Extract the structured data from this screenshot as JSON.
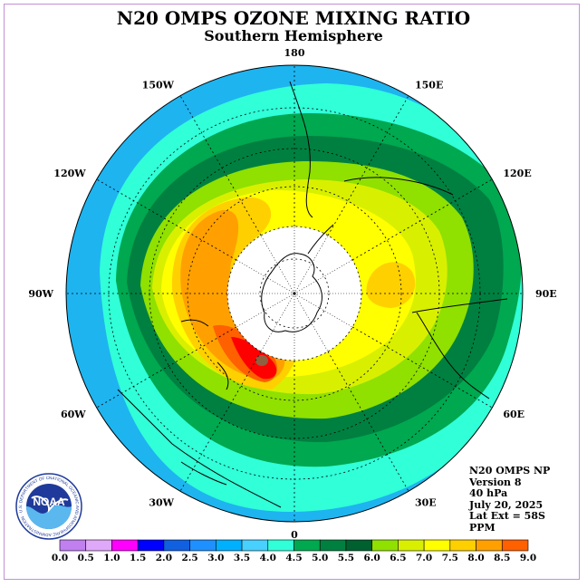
{
  "title": "N20 OMPS OZONE MIXING RATIO",
  "subtitle": "Southern Hemisphere",
  "longitude_labels": [
    {
      "text": "90W",
      "lon": -90
    },
    {
      "text": "60W",
      "lon": -60
    },
    {
      "text": "30W",
      "lon": -30
    },
    {
      "text": "0",
      "lon": 0
    },
    {
      "text": "30E",
      "lon": 30
    },
    {
      "text": "60E",
      "lon": 60
    },
    {
      "text": "90E",
      "lon": 90
    },
    {
      "text": "120E",
      "lon": 120
    },
    {
      "text": "150E",
      "lon": 150
    },
    {
      "text": "180",
      "lon": 180
    },
    {
      "text": "150W",
      "lon": -150
    },
    {
      "text": "120W",
      "lon": -120
    }
  ],
  "info": {
    "product": "N20 OMPS NP",
    "version": "Version 8",
    "level": "40 hPa",
    "date": "July 20, 2025",
    "lat_ext": "Lat Ext = 58S",
    "units": "PPM"
  },
  "logo": {
    "text": "NOAA",
    "ring_text": "NATIONAL OCEANIC AND ATMOSPHERIC ADMINISTRATION · U.S. DEPARTMENT OF COMMERCE"
  },
  "colorbar": {
    "ticks": [
      "0.0",
      "0.5",
      "1.0",
      "1.5",
      "2.0",
      "2.5",
      "3.0",
      "3.5",
      "4.0",
      "4.5",
      "5.0",
      "5.5",
      "6.0",
      "6.5",
      "7.0",
      "7.5",
      "8.0",
      "8.5",
      "9.0"
    ],
    "colors": [
      "#c080f0",
      "#e0a8f8",
      "#ff00ff",
      "#0000ff",
      "#1060e0",
      "#1e90ff",
      "#00b0ff",
      "#48d0ff",
      "#30ffd8",
      "#00a850",
      "#008040",
      "#006030",
      "#90e000",
      "#d8f000",
      "#ffff00",
      "#ffd000",
      "#ffa000",
      "#ff6000",
      "#ff0000",
      "#906040"
    ]
  },
  "chart_data": {
    "type": "heatmap",
    "projection": "south polar stereographic",
    "variable": "ozone mixing ratio",
    "units": "PPM",
    "lat_extent_deg": -58,
    "scale": [
      0.0,
      9.0
    ],
    "contours": [
      {
        "level": 4.0,
        "color": "#30ffd8"
      },
      {
        "level": 4.5,
        "color": "#00a850"
      },
      {
        "level": 5.0,
        "color": "#008040"
      },
      {
        "level": 5.5,
        "color": "#90e000"
      },
      {
        "level": 6.0,
        "color": "#d8f000"
      },
      {
        "level": 6.5,
        "color": "#ffff00"
      },
      {
        "level": 7.0,
        "color": "#ffd000"
      },
      {
        "level": 7.5,
        "color": "#ffa000"
      },
      {
        "level": 8.0,
        "color": "#ff6000"
      },
      {
        "level": 8.5,
        "color": "#ff0000"
      },
      {
        "level": 9.0,
        "color": "#906040"
      }
    ],
    "polar_night_fill": "#ffffff"
  }
}
